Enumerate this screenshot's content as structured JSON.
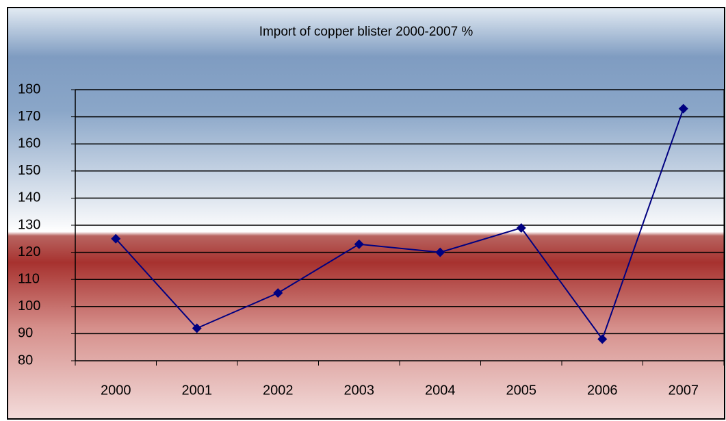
{
  "chart_data": {
    "type": "line",
    "title": "Import of copper blister 2000-2007 %",
    "categories": [
      "2000",
      "2001",
      "2002",
      "2003",
      "2004",
      "2005",
      "2006",
      "2007"
    ],
    "values": [
      125,
      92,
      105,
      123,
      120,
      129,
      88,
      173
    ],
    "color": "#000080",
    "ylim": [
      80,
      180
    ],
    "yticks": [
      80,
      90,
      100,
      110,
      120,
      130,
      140,
      150,
      160,
      170,
      180
    ],
    "grid": true
  }
}
